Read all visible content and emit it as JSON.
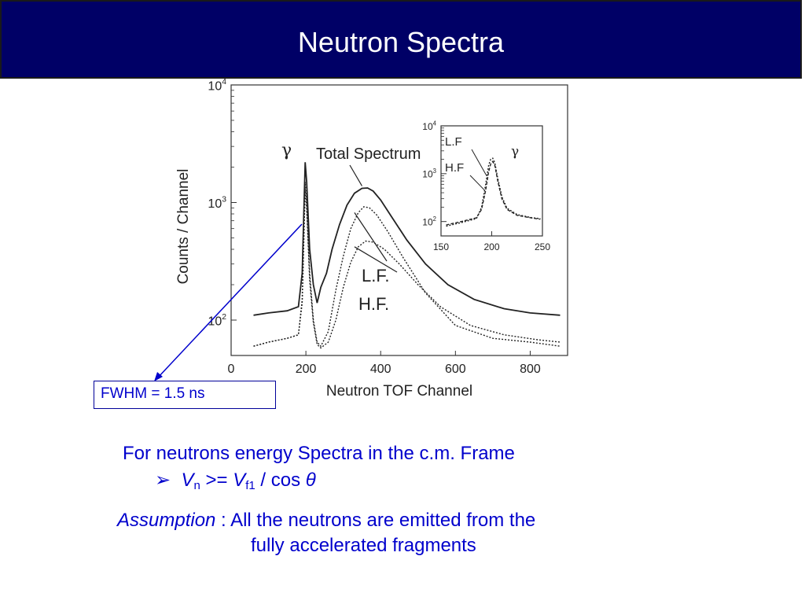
{
  "slide": {
    "title": "Neutron Spectra",
    "fwhm_label": "FWHM = 1.5 ns",
    "line1": "For neutrons energy Spectra in the c.m. Frame",
    "line2": {
      "arrow": "➢",
      "v": "V",
      "v_sub": "n",
      "op": " >= ",
      "v2": "V",
      "v2_sub": "f1",
      "rest": " / cos ",
      "theta": "θ"
    },
    "line3": {
      "emph": "Assumption",
      "rest": " : All the neutrons are emitted from the"
    },
    "line4": "fully accelerated fragments"
  },
  "colors": {
    "title_bg": "#000066",
    "title_text": "#ffffff",
    "accent_text": "#0000cc",
    "annotation_line": "#0000cc"
  },
  "chart_data": [
    {
      "type": "line",
      "title": "",
      "xlabel": "Neutron TOF Channel",
      "ylabel": "Counts / Channel",
      "xlim": [
        0,
        900
      ],
      "ylim": [
        50,
        10000
      ],
      "yscale": "log",
      "x_ticks": [
        "0",
        "200",
        "400",
        "600",
        "800"
      ],
      "y_ticks": [
        "10^2",
        "10^3",
        "10^4"
      ],
      "annotations": [
        "γ",
        "Total Spectrum",
        "L.F.",
        "H.F."
      ],
      "series": [
        {
          "name": "Total Spectrum",
          "style": "solid",
          "x": [
            60,
            100,
            150,
            180,
            190,
            198,
            202,
            210,
            220,
            230,
            240,
            255,
            270,
            290,
            310,
            330,
            350,
            365,
            380,
            400,
            430,
            470,
            520,
            580,
            650,
            730,
            800,
            880
          ],
          "y": [
            110,
            115,
            120,
            130,
            250,
            2200,
            1500,
            400,
            200,
            140,
            190,
            250,
            400,
            650,
            950,
            1200,
            1320,
            1330,
            1250,
            1050,
            750,
            480,
            300,
            200,
            150,
            125,
            115,
            110
          ]
        },
        {
          "name": "L.F.",
          "style": "dotted",
          "x": [
            60,
            100,
            150,
            180,
            190,
            198,
            202,
            210,
            220,
            230,
            240,
            260,
            280,
            300,
            320,
            340,
            355,
            370,
            390,
            420,
            460,
            520,
            600,
            700,
            800,
            880
          ],
          "y": [
            60,
            65,
            70,
            75,
            150,
            1500,
            1000,
            250,
            100,
            65,
            60,
            80,
            180,
            350,
            600,
            820,
            920,
            900,
            780,
            560,
            340,
            170,
            90,
            70,
            65,
            60
          ]
        },
        {
          "name": "H.F.",
          "style": "dotted",
          "x": [
            60,
            100,
            150,
            180,
            190,
            198,
            202,
            210,
            220,
            230,
            240,
            260,
            280,
            300,
            320,
            340,
            360,
            380,
            410,
            450,
            500,
            560,
            640,
            730,
            820,
            880
          ],
          "y": [
            60,
            65,
            70,
            75,
            140,
            1300,
            900,
            220,
            95,
            62,
            58,
            65,
            100,
            190,
            310,
            420,
            470,
            460,
            400,
            300,
            200,
            130,
            90,
            75,
            68,
            65
          ]
        }
      ]
    },
    {
      "type": "line",
      "title": "",
      "xlabel": "",
      "ylabel": "",
      "xlim": [
        150,
        250
      ],
      "ylim": [
        50,
        10000
      ],
      "yscale": "log",
      "x_ticks": [
        "150",
        "200",
        "250"
      ],
      "y_ticks": [
        "10^2",
        "10^3",
        "10^4"
      ],
      "annotations": [
        "L.F",
        "H.F",
        "γ"
      ],
      "series": [
        {
          "name": "L.F",
          "style": "dotted",
          "x": [
            155,
            170,
            185,
            190,
            194,
            197,
            199,
            201,
            203,
            206,
            210,
            215,
            225,
            240,
            248
          ],
          "y": [
            80,
            95,
            115,
            200,
            600,
            1500,
            2000,
            2100,
            1700,
            800,
            330,
            190,
            140,
            120,
            115
          ]
        },
        {
          "name": "H.F",
          "style": "dashed",
          "x": [
            155,
            170,
            185,
            190,
            194,
            197,
            199,
            201,
            203,
            206,
            210,
            215,
            225,
            240,
            248
          ],
          "y": [
            85,
            100,
            120,
            180,
            450,
            1100,
            1600,
            1800,
            1500,
            700,
            300,
            180,
            135,
            118,
            112
          ]
        }
      ]
    }
  ]
}
